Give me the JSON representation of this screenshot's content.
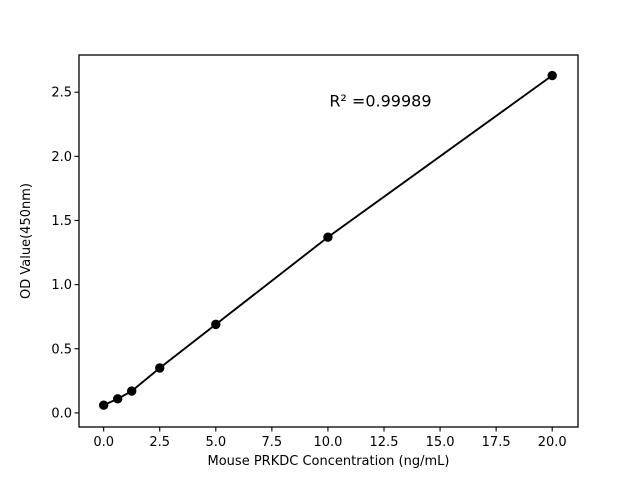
{
  "chart_data": {
    "type": "scatter",
    "xlabel": "Mouse PRKDC Concentration (ng/mL)",
    "ylabel": "OD Value(450nm)",
    "x": [
      0,
      0.625,
      1.25,
      2.5,
      5,
      10,
      20
    ],
    "y": [
      0.06,
      0.11,
      0.17,
      0.35,
      0.69,
      1.37,
      2.63
    ],
    "line_through_points": true,
    "marker": "circle",
    "marker_color": "#000000",
    "line_color": "#000000",
    "background_color": "#ffffff",
    "spine_color": "#000000",
    "grid": false,
    "xlim": [
      -1.1,
      21.15
    ],
    "ylim": [
      -0.11,
      2.79
    ],
    "xticks": {
      "values": [
        0,
        2.5,
        5,
        7.5,
        10,
        12.5,
        15,
        17.5,
        20
      ],
      "labels": [
        "0.0",
        "2.5",
        "5.0",
        "7.5",
        "10.0",
        "12.5",
        "15.0",
        "17.5",
        "20.0"
      ]
    },
    "yticks": {
      "values": [
        0,
        0.5,
        1,
        1.5,
        2,
        2.5
      ],
      "labels": [
        "0.0",
        "0.5",
        "1.0",
        "1.5",
        "2.0",
        "2.5"
      ]
    },
    "annotation": {
      "text": "R² =0.99989",
      "x": 12.34,
      "y": 2.43
    }
  }
}
